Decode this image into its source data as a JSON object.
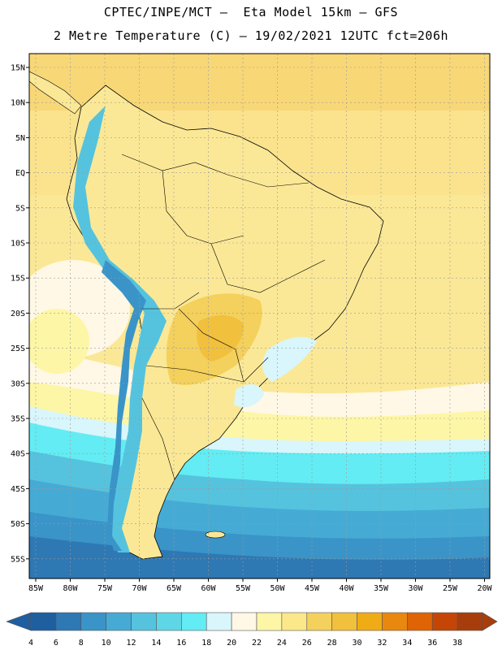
{
  "header": {
    "line1": "CPTEC/INPE/MCT –  Eta Model 15km – GFS",
    "line2": "2 Metre Temperature (C) – 19/02/2021 12UTC fct=206h"
  },
  "map": {
    "lat_labels": [
      "15N",
      "10N",
      "5N",
      "EQ",
      "5S",
      "10S",
      "15S",
      "20S",
      "25S",
      "30S",
      "35S",
      "40S",
      "45S",
      "50S",
      "55S"
    ],
    "lon_labels": [
      "85W",
      "80W",
      "75W",
      "70W",
      "65W",
      "60W",
      "55W",
      "50W",
      "45W",
      "40W",
      "35W",
      "30W",
      "25W",
      "20W"
    ]
  },
  "legend": {
    "colors": [
      "#1f5fa0",
      "#2e78b4",
      "#3a94c8",
      "#45abd5",
      "#55c3de",
      "#5fd6e6",
      "#63ecf3",
      "#d8f6fb",
      "#fff8e6",
      "#fdf6a6",
      "#fbe88a",
      "#f4d05c",
      "#f1c03d",
      "#f0ac16",
      "#e8880f",
      "#df6405",
      "#c44506",
      "#a83d0c"
    ],
    "labels": [
      "4",
      "6",
      "8",
      "10",
      "12",
      "14",
      "16",
      "18",
      "20",
      "22",
      "24",
      "26",
      "28",
      "30",
      "32",
      "34",
      "36",
      "38"
    ]
  }
}
